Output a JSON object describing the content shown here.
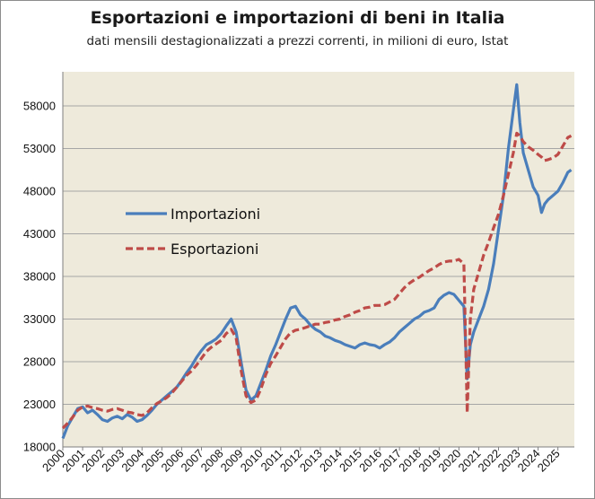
{
  "chart_data": {
    "type": "line",
    "title": "Esportazioni  e importazioni  di beni in Italia",
    "subtitle": "dati mensili destagionalizzati  a prezzi correnti, in milioni di euro, Istat",
    "xlabel": "",
    "ylabel": "",
    "ylim": [
      18000,
      62000
    ],
    "xlim": [
      2000.0,
      2025.83
    ],
    "y_ticks": [
      18000,
      23000,
      28000,
      33000,
      38000,
      43000,
      48000,
      53000,
      58000
    ],
    "x_tick_labels": [
      "2000",
      "2001",
      "2002",
      "2003",
      "2004",
      "2005",
      "2006",
      "2007",
      "2008",
      "2009",
      "2010",
      "2011",
      "2012",
      "2013",
      "2014",
      "2015",
      "2016",
      "2017",
      "2018",
      "2019",
      "2020",
      "2021",
      "2022",
      "2023",
      "2024",
      "2025"
    ],
    "grid": true,
    "legend_position": "center-left",
    "plot_background": "#eeeadb",
    "series": [
      {
        "name": "Importazioni",
        "color": "#4a7ebb",
        "style": "solid",
        "points": [
          [
            2000.0,
            19000
          ],
          [
            2000.25,
            20500
          ],
          [
            2000.5,
            21500
          ],
          [
            2000.75,
            22500
          ],
          [
            2001.0,
            22700
          ],
          [
            2001.25,
            22000
          ],
          [
            2001.5,
            22300
          ],
          [
            2001.75,
            21800
          ],
          [
            2002.0,
            21200
          ],
          [
            2002.25,
            21000
          ],
          [
            2002.5,
            21400
          ],
          [
            2002.75,
            21600
          ],
          [
            2003.0,
            21300
          ],
          [
            2003.25,
            21800
          ],
          [
            2003.5,
            21500
          ],
          [
            2003.75,
            21000
          ],
          [
            2004.0,
            21200
          ],
          [
            2004.25,
            21700
          ],
          [
            2004.5,
            22300
          ],
          [
            2004.75,
            23000
          ],
          [
            2005.0,
            23500
          ],
          [
            2005.25,
            24000
          ],
          [
            2005.5,
            24500
          ],
          [
            2005.75,
            25000
          ],
          [
            2006.0,
            25800
          ],
          [
            2006.25,
            26700
          ],
          [
            2006.5,
            27500
          ],
          [
            2006.75,
            28500
          ],
          [
            2007.0,
            29300
          ],
          [
            2007.25,
            30000
          ],
          [
            2007.5,
            30300
          ],
          [
            2007.75,
            30700
          ],
          [
            2008.0,
            31300
          ],
          [
            2008.25,
            32200
          ],
          [
            2008.5,
            33000
          ],
          [
            2008.75,
            31500
          ],
          [
            2009.0,
            28000
          ],
          [
            2009.25,
            24700
          ],
          [
            2009.5,
            23500
          ],
          [
            2009.75,
            24000
          ],
          [
            2010.0,
            25500
          ],
          [
            2010.25,
            27000
          ],
          [
            2010.5,
            28700
          ],
          [
            2010.75,
            30000
          ],
          [
            2011.0,
            31500
          ],
          [
            2011.25,
            33000
          ],
          [
            2011.5,
            34300
          ],
          [
            2011.75,
            34500
          ],
          [
            2012.0,
            33500
          ],
          [
            2012.25,
            33000
          ],
          [
            2012.5,
            32300
          ],
          [
            2012.75,
            31800
          ],
          [
            2013.0,
            31500
          ],
          [
            2013.25,
            31000
          ],
          [
            2013.5,
            30800
          ],
          [
            2013.75,
            30500
          ],
          [
            2014.0,
            30300
          ],
          [
            2014.25,
            30000
          ],
          [
            2014.5,
            29800
          ],
          [
            2014.75,
            29600
          ],
          [
            2015.0,
            30000
          ],
          [
            2015.25,
            30200
          ],
          [
            2015.5,
            30000
          ],
          [
            2015.75,
            29900
          ],
          [
            2016.0,
            29600
          ],
          [
            2016.25,
            30000
          ],
          [
            2016.5,
            30300
          ],
          [
            2016.75,
            30800
          ],
          [
            2017.0,
            31500
          ],
          [
            2017.25,
            32000
          ],
          [
            2017.5,
            32500
          ],
          [
            2017.75,
            33000
          ],
          [
            2018.0,
            33300
          ],
          [
            2018.25,
            33800
          ],
          [
            2018.5,
            34000
          ],
          [
            2018.75,
            34300
          ],
          [
            2019.0,
            35300
          ],
          [
            2019.25,
            35800
          ],
          [
            2019.5,
            36100
          ],
          [
            2019.75,
            35900
          ],
          [
            2020.0,
            35200
          ],
          [
            2020.25,
            34500
          ],
          [
            2020.42,
            26000
          ],
          [
            2020.58,
            30000
          ],
          [
            2020.75,
            31500
          ],
          [
            2021.0,
            33000
          ],
          [
            2021.25,
            34500
          ],
          [
            2021.5,
            36500
          ],
          [
            2021.75,
            39500
          ],
          [
            2022.0,
            43500
          ],
          [
            2022.25,
            47500
          ],
          [
            2022.5,
            53000
          ],
          [
            2022.75,
            57500
          ],
          [
            2022.92,
            60500
          ],
          [
            2023.08,
            56000
          ],
          [
            2023.25,
            52500
          ],
          [
            2023.5,
            50500
          ],
          [
            2023.75,
            48500
          ],
          [
            2024.0,
            47500
          ],
          [
            2024.17,
            45500
          ],
          [
            2024.33,
            46500
          ],
          [
            2024.5,
            47000
          ],
          [
            2024.75,
            47500
          ],
          [
            2025.0,
            48000
          ],
          [
            2025.25,
            49000
          ],
          [
            2025.5,
            50200
          ],
          [
            2025.67,
            50500
          ]
        ]
      },
      {
        "name": "Esportazioni",
        "color": "#be4b48",
        "style": "dashed",
        "points": [
          [
            2000.0,
            20200
          ],
          [
            2000.25,
            20800
          ],
          [
            2000.5,
            21500
          ],
          [
            2000.75,
            22300
          ],
          [
            2001.0,
            22700
          ],
          [
            2001.25,
            22800
          ],
          [
            2001.5,
            22600
          ],
          [
            2001.75,
            22500
          ],
          [
            2002.0,
            22300
          ],
          [
            2002.25,
            22200
          ],
          [
            2002.5,
            22400
          ],
          [
            2002.75,
            22500
          ],
          [
            2003.0,
            22300
          ],
          [
            2003.25,
            22100
          ],
          [
            2003.5,
            22000
          ],
          [
            2003.75,
            21800
          ],
          [
            2004.0,
            21700
          ],
          [
            2004.25,
            22000
          ],
          [
            2004.5,
            22600
          ],
          [
            2004.75,
            23100
          ],
          [
            2005.0,
            23400
          ],
          [
            2005.25,
            23800
          ],
          [
            2005.5,
            24300
          ],
          [
            2005.75,
            25000
          ],
          [
            2006.0,
            25700
          ],
          [
            2006.25,
            26400
          ],
          [
            2006.5,
            26900
          ],
          [
            2006.75,
            27600
          ],
          [
            2007.0,
            28400
          ],
          [
            2007.25,
            29200
          ],
          [
            2007.5,
            29700
          ],
          [
            2007.75,
            30100
          ],
          [
            2008.0,
            30500
          ],
          [
            2008.25,
            31300
          ],
          [
            2008.5,
            31800
          ],
          [
            2008.75,
            30800
          ],
          [
            2009.0,
            27000
          ],
          [
            2009.25,
            24000
          ],
          [
            2009.5,
            23200
          ],
          [
            2009.75,
            23500
          ],
          [
            2010.0,
            24800
          ],
          [
            2010.25,
            26500
          ],
          [
            2010.5,
            27800
          ],
          [
            2010.75,
            28700
          ],
          [
            2011.0,
            29700
          ],
          [
            2011.25,
            30700
          ],
          [
            2011.5,
            31400
          ],
          [
            2011.75,
            31700
          ],
          [
            2012.0,
            31800
          ],
          [
            2012.25,
            32000
          ],
          [
            2012.5,
            32200
          ],
          [
            2012.75,
            32400
          ],
          [
            2013.0,
            32400
          ],
          [
            2013.25,
            32600
          ],
          [
            2013.5,
            32700
          ],
          [
            2013.75,
            32900
          ],
          [
            2014.0,
            33000
          ],
          [
            2014.25,
            33300
          ],
          [
            2014.5,
            33500
          ],
          [
            2014.75,
            33800
          ],
          [
            2015.0,
            34000
          ],
          [
            2015.25,
            34300
          ],
          [
            2015.5,
            34400
          ],
          [
            2015.75,
            34600
          ],
          [
            2016.0,
            34600
          ],
          [
            2016.25,
            34700
          ],
          [
            2016.5,
            35000
          ],
          [
            2016.75,
            35300
          ],
          [
            2017.0,
            36000
          ],
          [
            2017.25,
            36700
          ],
          [
            2017.5,
            37200
          ],
          [
            2017.75,
            37600
          ],
          [
            2018.0,
            37900
          ],
          [
            2018.25,
            38300
          ],
          [
            2018.5,
            38700
          ],
          [
            2018.75,
            39000
          ],
          [
            2019.0,
            39400
          ],
          [
            2019.25,
            39700
          ],
          [
            2019.5,
            39800
          ],
          [
            2019.75,
            39800
          ],
          [
            2020.0,
            40000
          ],
          [
            2020.25,
            39500
          ],
          [
            2020.42,
            22000
          ],
          [
            2020.58,
            33000
          ],
          [
            2020.75,
            36500
          ],
          [
            2021.0,
            38500
          ],
          [
            2021.25,
            40500
          ],
          [
            2021.5,
            42000
          ],
          [
            2021.75,
            43700
          ],
          [
            2022.0,
            45300
          ],
          [
            2022.25,
            47500
          ],
          [
            2022.5,
            50000
          ],
          [
            2022.75,
            52500
          ],
          [
            2022.92,
            54800
          ],
          [
            2023.08,
            54500
          ],
          [
            2023.25,
            53800
          ],
          [
            2023.5,
            53200
          ],
          [
            2023.75,
            52800
          ],
          [
            2024.0,
            52300
          ],
          [
            2024.17,
            52000
          ],
          [
            2024.33,
            51600
          ],
          [
            2024.5,
            51700
          ],
          [
            2024.75,
            51900
          ],
          [
            2025.0,
            52300
          ],
          [
            2025.25,
            53300
          ],
          [
            2025.5,
            54300
          ],
          [
            2025.67,
            54500
          ]
        ]
      }
    ]
  }
}
